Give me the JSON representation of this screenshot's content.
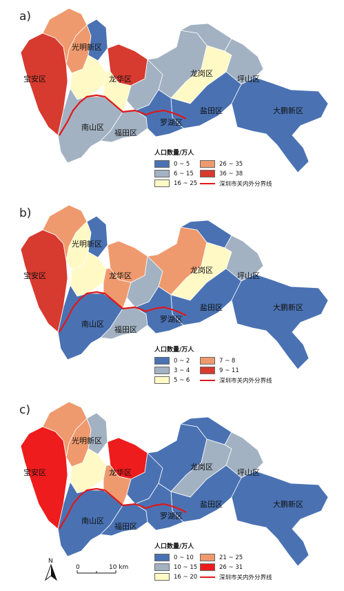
{
  "districts": {
    "guangming": "光明新区",
    "baoan": "宝安区",
    "longhua": "龙华区",
    "longgang": "龙岗区",
    "pingshan": "坪山区",
    "yantian": "盐田区",
    "dapeng": "大鹏新区",
    "nanshan": "南山区",
    "futian": "福田区",
    "luohu": "罗湖区"
  },
  "panels": [
    {
      "letter": "a)",
      "legend_title": "人口数量/万人",
      "legend": [
        {
          "label": "0 ~ 5",
          "color": "#4a72b3"
        },
        {
          "label": "6 ~ 15",
          "color": "#a3b2c2"
        },
        {
          "label": "16 ~ 25",
          "color": "#fff9c6"
        },
        {
          "label": "26 ~ 35",
          "color": "#ef9a6e"
        },
        {
          "label": "36 ~ 38",
          "color": "#d73a2e"
        }
      ],
      "boundary_label": "深圳市关内外分界线",
      "fills": {
        "baoan_w": "#d73a2e",
        "baoan_e": "#ef9a6e",
        "gm_w": "#ef9a6e",
        "gm_e": "#4a72b3",
        "lh_n": "#d73a2e",
        "lh_w": "#fff9c6",
        "lh_c": "#fff9c6",
        "lh_e": "#a3b2c2",
        "lg_w": "#a3b2c2",
        "lg_n": "#a3b2c2",
        "lg_c": "#fff9c6",
        "ps": "#a3b2c2",
        "yt": "#4a72b3",
        "dp": "#4a72b3",
        "ns": "#a3b2c2",
        "ft": "#a3b2c2",
        "lu": "#4a72b3"
      }
    },
    {
      "letter": "b)",
      "legend_title": "人口数量/万人",
      "legend": [
        {
          "label": "0 ~ 2",
          "color": "#4a72b3"
        },
        {
          "label": "3 ~ 4",
          "color": "#a3b2c2"
        },
        {
          "label": "5 ~ 6",
          "color": "#fff9c6"
        },
        {
          "label": "7 ~ 8",
          "color": "#ef9a6e"
        },
        {
          "label": "9 ~ 11",
          "color": "#d73a2e"
        }
      ],
      "boundary_label": "深圳市关内外分界线",
      "fills": {
        "baoan_w": "#d73a2e",
        "baoan_e": "#ef9a6e",
        "gm_w": "#fff9c6",
        "gm_e": "#4a72b3",
        "lh_n": "#ef9a6e",
        "lh_w": "#fff9c6",
        "lh_c": "#ef9a6e",
        "lh_e": "#a3b2c2",
        "lg_w": "#ef9a6e",
        "lg_n": "#4a72b3",
        "lg_c": "#fff9c6",
        "ps": "#a3b2c2",
        "yt": "#4a72b3",
        "dp": "#4a72b3",
        "ns": "#4a72b3",
        "ft": "#a3b2c2",
        "lu": "#4a72b3"
      }
    },
    {
      "letter": "c)",
      "legend_title": "人口数量/万人",
      "legend": [
        {
          "label": "0 ~ 10",
          "color": "#4a72b3"
        },
        {
          "label": "10 ~ 15",
          "color": "#a3b2c2"
        },
        {
          "label": "16 ~ 20",
          "color": "#fff9c6"
        },
        {
          "label": "21 ~ 25",
          "color": "#ef9a6e"
        },
        {
          "label": "26 ~ 31",
          "color": "#ee1c1c"
        }
      ],
      "boundary_label": "深圳市关内外分界线",
      "fills": {
        "baoan_w": "#ee1c1c",
        "baoan_e": "#ef9a6e",
        "gm_w": "#ef9a6e",
        "gm_e": "#a3b2c2",
        "lh_n": "#ee1c1c",
        "lh_w": "#fff9c6",
        "lh_c": "#ef9a6e",
        "lh_e": "#4a72b3",
        "lg_w": "#4a72b3",
        "lg_n": "#4a72b3",
        "lg_c": "#a3b2c2",
        "ps": "#a3b2c2",
        "yt": "#4a72b3",
        "dp": "#4a72b3",
        "ns": "#4a72b3",
        "ft": "#4a72b3",
        "lu": "#4a72b3"
      }
    }
  ],
  "north_label": "N",
  "scale": {
    "start": "0",
    "end": "10 km"
  }
}
